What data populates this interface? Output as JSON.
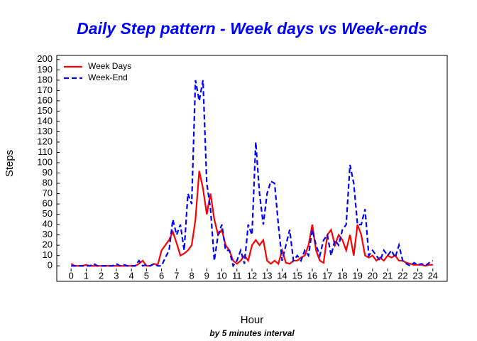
{
  "chart_data": {
    "type": "line",
    "title": "Daily Step pattern - Week days vs Week-ends",
    "x_label": "Hour",
    "subtitle": "by 5 minutes interval",
    "y_label": "Steps",
    "x": [
      0,
      0.25,
      0.5,
      0.75,
      1,
      1.25,
      1.5,
      1.75,
      2,
      2.25,
      2.5,
      2.75,
      3,
      3.25,
      3.5,
      3.75,
      4,
      4.25,
      4.5,
      4.75,
      5,
      5.25,
      5.5,
      5.75,
      6,
      6.25,
      6.5,
      6.75,
      7,
      7.25,
      7.5,
      7.75,
      8,
      8.25,
      8.5,
      8.75,
      9,
      9.25,
      9.5,
      9.75,
      10,
      10.25,
      10.5,
      10.75,
      11,
      11.25,
      11.5,
      11.75,
      12,
      12.25,
      12.5,
      12.75,
      13,
      13.25,
      13.5,
      13.75,
      14,
      14.25,
      14.5,
      14.75,
      15,
      15.25,
      15.5,
      15.75,
      16,
      16.25,
      16.5,
      16.75,
      17,
      17.25,
      17.5,
      17.75,
      18,
      18.25,
      18.5,
      18.75,
      19,
      19.25,
      19.5,
      19.75,
      20,
      20.25,
      20.5,
      20.75,
      21,
      21.25,
      21.5,
      21.75,
      22,
      22.25,
      22.5,
      22.75,
      23,
      23.25,
      23.5,
      23.75,
      24
    ],
    "series": [
      {
        "name": "Week Days",
        "color": "#ff0000",
        "dashed": false,
        "values": [
          2,
          0,
          0,
          0,
          1,
          0,
          0,
          0,
          0,
          0,
          0,
          0,
          0,
          0,
          0,
          0,
          0,
          0,
          2,
          5,
          0,
          0,
          2,
          1,
          15,
          20,
          25,
          33,
          22,
          10,
          12,
          15,
          20,
          45,
          92,
          75,
          50,
          70,
          45,
          30,
          35,
          20,
          15,
          5,
          2,
          5,
          10,
          5,
          20,
          25,
          20,
          25,
          5,
          2,
          5,
          2,
          15,
          3,
          2,
          5,
          5,
          8,
          10,
          20,
          40,
          15,
          5,
          3,
          30,
          35,
          20,
          30,
          25,
          15,
          30,
          10,
          40,
          30,
          10,
          8,
          10,
          5,
          8,
          5,
          10,
          8,
          10,
          5,
          5,
          3,
          2,
          1,
          1,
          1,
          0,
          1,
          1
        ]
      },
      {
        "name": "Week-End",
        "color": "#0000ff",
        "dashed": true,
        "values": [
          0,
          0,
          0,
          0,
          0,
          0,
          2,
          0,
          0,
          0,
          0,
          0,
          2,
          0,
          1,
          0,
          0,
          0,
          5,
          0,
          1,
          0,
          2,
          0,
          0,
          8,
          15,
          45,
          30,
          40,
          15,
          70,
          60,
          180,
          160,
          180,
          80,
          55,
          5,
          30,
          40,
          15,
          15,
          0,
          5,
          15,
          2,
          40,
          30,
          120,
          70,
          40,
          70,
          82,
          80,
          40,
          5,
          20,
          35,
          5,
          10,
          5,
          15,
          10,
          35,
          20,
          10,
          25,
          30,
          10,
          25,
          20,
          35,
          40,
          98,
          80,
          40,
          40,
          55,
          10,
          15,
          10,
          5,
          15,
          10,
          15,
          8,
          20,
          5,
          2,
          0,
          3,
          1,
          2,
          0,
          3,
          5
        ]
      }
    ],
    "xlim": [
      -0.95,
      24.95
    ],
    "xticks": [
      0,
      1,
      2,
      3,
      4,
      5,
      6,
      7,
      8,
      9,
      10,
      11,
      12,
      13,
      14,
      15,
      16,
      17,
      18,
      19,
      20,
      21,
      22,
      23,
      24
    ],
    "ylim": [
      -15,
      204
    ],
    "yticks": [
      0,
      10,
      20,
      30,
      40,
      50,
      60,
      70,
      80,
      90,
      100,
      110,
      120,
      130,
      140,
      150,
      160,
      170,
      180,
      190,
      200
    ],
    "grid": false,
    "legend": "top-left"
  }
}
